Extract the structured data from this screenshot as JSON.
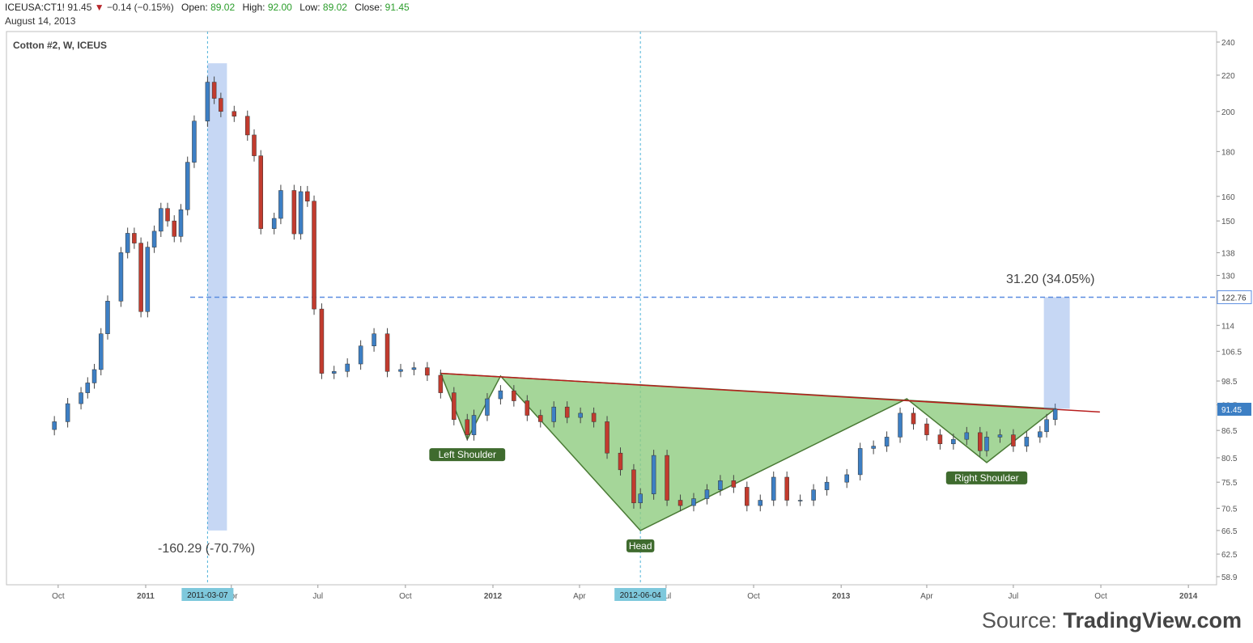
{
  "header": {
    "symbol": "ICEUSA:CT1!",
    "last": "91.45",
    "change": "−0.14 (−0.15%)",
    "open_label": "Open:",
    "open": "89.02",
    "high_label": "High:",
    "high": "92.00",
    "low_label": "Low:",
    "low": "89.02",
    "close_label": "Close:",
    "close": "91.45",
    "date": "August 14, 2013"
  },
  "source": {
    "prefix": "Source:",
    "brand": "TradingView.com"
  },
  "chart_data": {
    "type": "candlestick",
    "title": "Cotton #2, W, ICEUS",
    "scale": "log",
    "ylim": [
      57,
      245
    ],
    "yticks": [
      240,
      220,
      200,
      180,
      160,
      150,
      138,
      130,
      114,
      106.5,
      98.5,
      92.5,
      86.5,
      80.5,
      75.5,
      70.5,
      66.5,
      62.5,
      58.9
    ],
    "x_tick_labels": [
      "Oct",
      "2011",
      "Apr",
      "Jul",
      "Oct",
      "2012",
      "Apr",
      "Jul",
      "Oct",
      "2013",
      "Apr",
      "Jul",
      "Oct",
      "2014"
    ],
    "x_tick_dates": [
      "2010-10-01",
      "2011-01-01",
      "2011-04-01",
      "2011-07-01",
      "2011-10-01",
      "2012-01-01",
      "2012-04-01",
      "2012-07-01",
      "2012-10-01",
      "2013-01-01",
      "2013-04-01",
      "2013-07-01",
      "2013-10-01",
      "2014-01-01"
    ],
    "bold_ticks": [
      "2011",
      "2012",
      "2013",
      "2014"
    ],
    "colors": {
      "up": "#3d7fc4",
      "down": "#c23b2e",
      "pattern_fill": "#8fcc7f",
      "pattern_line": "#4a7a35",
      "neckline": "#b81d1d",
      "target": "#5b8de0",
      "price_badge": "#3d7fc4"
    },
    "markers": [
      {
        "label": "2011-03-07",
        "date": "2011-03-07"
      },
      {
        "label": "2012-06-04",
        "date": "2012-06-04"
      }
    ],
    "price_badges": [
      "122.76",
      "91.45"
    ],
    "annotations": {
      "drop_text": "-160.29 (-70.7%)",
      "rise_text": "31.20 (34.05%)",
      "target_price": 122.76,
      "drop_range": [
        66.5,
        227
      ],
      "rise_range": [
        91.56,
        122.76
      ]
    },
    "pattern_labels": [
      "Left Shoulder",
      "Head",
      "Right Shoulder"
    ],
    "pattern_points": [
      {
        "date": "2011-11-07",
        "price": 100.5
      },
      {
        "date": "2011-12-05",
        "price": 84.5
      },
      {
        "date": "2012-01-09",
        "price": 99.8
      },
      {
        "date": "2012-06-04",
        "price": 66.5
      },
      {
        "date": "2013-03-11",
        "price": 94.0
      },
      {
        "date": "2013-06-03",
        "price": 79.5
      },
      {
        "date": "2013-08-14",
        "price": 91.56
      }
    ],
    "neckline": [
      {
        "date": "2011-11-07",
        "price": 100.5
      },
      {
        "date": "2013-09-30",
        "price": 90.8
      }
    ],
    "weekly_closes": [
      [
        "2010-09-13",
        86.7
      ],
      [
        "2010-09-27",
        88.5
      ],
      [
        "2010-10-11",
        92.8
      ],
      [
        "2010-10-25",
        95.5
      ],
      [
        "2010-11-01",
        98.0
      ],
      [
        "2010-11-08",
        101.5
      ],
      [
        "2010-11-15",
        111.5
      ],
      [
        "2010-11-22",
        121.5
      ],
      [
        "2010-12-06",
        138.0
      ],
      [
        "2010-12-13",
        145.2
      ],
      [
        "2010-12-20",
        141.5
      ],
      [
        "2010-12-27",
        118.2
      ],
      [
        "2011-01-03",
        140.0
      ],
      [
        "2011-01-10",
        146.0
      ],
      [
        "2011-01-17",
        155.0
      ],
      [
        "2011-01-24",
        150.0
      ],
      [
        "2011-01-31",
        144.0
      ],
      [
        "2011-02-07",
        154.5
      ],
      [
        "2011-02-14",
        175.0
      ],
      [
        "2011-02-21",
        195.0
      ],
      [
        "2011-03-07",
        216.0
      ],
      [
        "2011-03-14",
        207.0
      ],
      [
        "2011-03-21",
        200.0
      ],
      [
        "2011-04-04",
        197.5
      ],
      [
        "2011-04-18",
        188.0
      ],
      [
        "2011-04-25",
        178.0
      ],
      [
        "2011-05-02",
        147.0
      ],
      [
        "2011-05-16",
        151.0
      ],
      [
        "2011-05-23",
        162.5
      ],
      [
        "2011-06-06",
        145.0
      ],
      [
        "2011-06-13",
        162.0
      ],
      [
        "2011-06-20",
        158.0
      ],
      [
        "2011-06-27",
        119.0
      ],
      [
        "2011-07-05",
        100.5
      ],
      [
        "2011-07-18",
        101.0
      ],
      [
        "2011-08-01",
        103.0
      ],
      [
        "2011-08-15",
        108.0
      ],
      [
        "2011-08-29",
        111.5
      ],
      [
        "2011-09-12",
        101.0
      ],
      [
        "2011-09-26",
        101.5
      ],
      [
        "2011-10-10",
        102.0
      ],
      [
        "2011-10-24",
        100.0
      ],
      [
        "2011-11-07",
        95.5
      ],
      [
        "2011-11-21",
        89.0
      ],
      [
        "2011-12-05",
        85.5
      ],
      [
        "2011-12-12",
        90.0
      ],
      [
        "2011-12-26",
        94.0
      ],
      [
        "2012-01-09",
        96.0
      ],
      [
        "2012-01-23",
        93.5
      ],
      [
        "2012-02-06",
        90.0
      ],
      [
        "2012-02-20",
        88.5
      ],
      [
        "2012-03-05",
        92.0
      ],
      [
        "2012-03-19",
        89.5
      ],
      [
        "2012-04-02",
        90.5
      ],
      [
        "2012-04-16",
        88.5
      ],
      [
        "2012-04-30",
        81.5
      ],
      [
        "2012-05-14",
        78.0
      ],
      [
        "2012-05-28",
        71.5
      ],
      [
        "2012-06-04",
        73.2
      ],
      [
        "2012-06-18",
        81.0
      ],
      [
        "2012-07-02",
        72.0
      ],
      [
        "2012-07-16",
        71.0
      ],
      [
        "2012-07-30",
        72.3
      ],
      [
        "2012-08-13",
        74.0
      ],
      [
        "2012-08-27",
        75.8
      ],
      [
        "2012-09-10",
        74.5
      ],
      [
        "2012-09-24",
        71.0
      ],
      [
        "2012-10-08",
        72.0
      ],
      [
        "2012-10-22",
        76.5
      ],
      [
        "2012-11-05",
        72.0
      ],
      [
        "2012-11-19",
        72.0
      ],
      [
        "2012-12-03",
        74.0
      ],
      [
        "2012-12-17",
        75.5
      ],
      [
        "2013-01-07",
        77.0
      ],
      [
        "2013-01-21",
        82.5
      ],
      [
        "2013-02-04",
        83.0
      ],
      [
        "2013-02-18",
        85.0
      ],
      [
        "2013-03-04",
        90.5
      ],
      [
        "2013-03-18",
        88.0
      ],
      [
        "2013-04-01",
        85.5
      ],
      [
        "2013-04-15",
        83.5
      ],
      [
        "2013-04-29",
        84.5
      ],
      [
        "2013-05-13",
        86.0
      ],
      [
        "2013-05-27",
        82.0
      ],
      [
        "2013-06-03",
        85.0
      ],
      [
        "2013-06-17",
        85.5
      ],
      [
        "2013-07-01",
        83.0
      ],
      [
        "2013-07-15",
        85.0
      ],
      [
        "2013-07-29",
        86.2
      ],
      [
        "2013-08-05",
        89.0
      ],
      [
        "2013-08-14",
        91.45
      ]
    ]
  }
}
